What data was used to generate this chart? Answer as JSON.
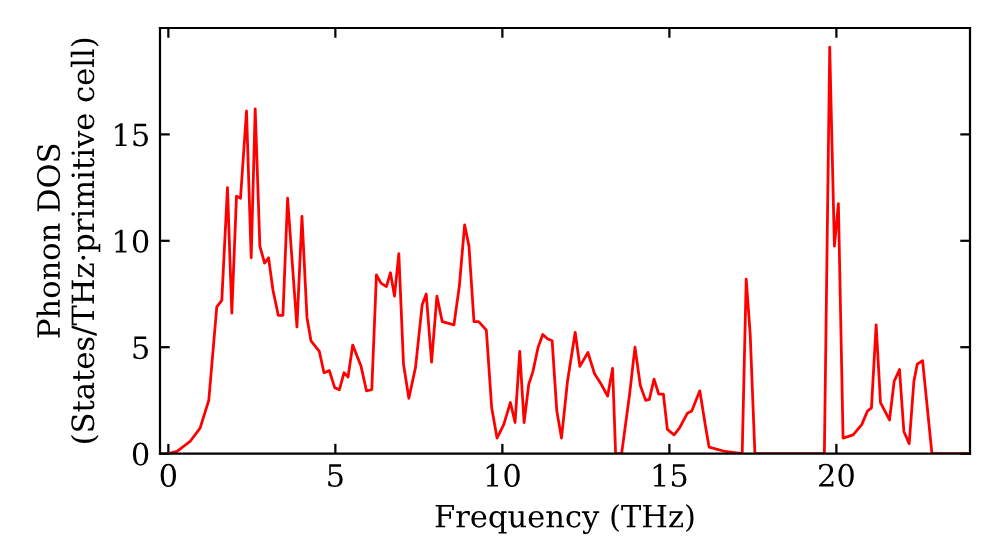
{
  "chart_data": {
    "type": "line",
    "xlabel": "Frequency (THz)",
    "ylabel": "Phonon DOS\n(States/THz·primitive cell)",
    "x": [
      0,
      0.26,
      0.65,
      0.95,
      1.21,
      1.45,
      1.6,
      1.77,
      1.9,
      2.04,
      2.16,
      2.34,
      2.48,
      2.6,
      2.74,
      2.88,
      3.0,
      3.13,
      3.29,
      3.43,
      3.57,
      3.71,
      3.85,
      4.0,
      4.15,
      4.27,
      4.52,
      4.66,
      4.82,
      4.98,
      5.12,
      5.26,
      5.38,
      5.52,
      5.77,
      5.93,
      6.09,
      6.23,
      6.37,
      6.53,
      6.65,
      6.77,
      6.9,
      7.04,
      7.2,
      7.4,
      7.6,
      7.72,
      7.88,
      8.04,
      8.2,
      8.55,
      8.71,
      8.87,
      9.0,
      9.15,
      9.29,
      9.52,
      9.68,
      9.84,
      10.04,
      10.24,
      10.38,
      10.52,
      10.65,
      10.79,
      10.91,
      11.07,
      11.21,
      11.35,
      11.49,
      11.63,
      11.77,
      11.95,
      12.18,
      12.32,
      12.56,
      12.76,
      12.96,
      13.15,
      13.3,
      13.39,
      13.57,
      13.81,
      13.97,
      14.13,
      14.29,
      14.4,
      14.54,
      14.68,
      14.82,
      14.94,
      15.14,
      15.3,
      15.54,
      15.67,
      15.91,
      16.09,
      16.19,
      16.67,
      17.18,
      17.3,
      17.42,
      17.56,
      19.64,
      19.8,
      19.94,
      20.06,
      20.2,
      20.5,
      20.76,
      20.93,
      21.05,
      21.19,
      21.32,
      21.59,
      21.73,
      21.89,
      22.02,
      22.18,
      22.32,
      22.42,
      22.58,
      22.86,
      23.87
    ],
    "series": [
      {
        "color": "#ff0000",
        "values": [
          0,
          0.1,
          0.57,
          1.2,
          2.5,
          6.9,
          7.2,
          12.5,
          6.6,
          12.1,
          12.0,
          16.1,
          9.2,
          16.2,
          9.75,
          8.95,
          9.2,
          7.7,
          6.5,
          6.5,
          12.0,
          8.95,
          5.95,
          11.15,
          6.4,
          5.3,
          4.8,
          3.8,
          3.9,
          3.1,
          3.0,
          3.8,
          3.6,
          5.1,
          4.1,
          2.95,
          3.0,
          8.4,
          8.0,
          7.85,
          8.5,
          7.4,
          9.4,
          4.2,
          2.6,
          4.05,
          7.0,
          7.5,
          4.3,
          7.4,
          6.2,
          6.05,
          7.85,
          10.75,
          9.75,
          6.2,
          6.2,
          5.8,
          2.15,
          0.73,
          1.36,
          2.4,
          1.46,
          4.8,
          1.46,
          3.26,
          3.83,
          5.0,
          5.6,
          5.4,
          5.3,
          2.0,
          0.73,
          3.4,
          5.7,
          4.1,
          4.75,
          3.75,
          3.26,
          2.7,
          4.0,
          0,
          0,
          2.8,
          5.0,
          3.2,
          2.5,
          2.55,
          3.5,
          2.8,
          2.8,
          1.14,
          0.88,
          1.2,
          1.9,
          2.0,
          2.95,
          1.2,
          0.3,
          0.1,
          0,
          8.2,
          5.6,
          0,
          0,
          19.1,
          9.75,
          11.75,
          0.73,
          0.88,
          1.36,
          2.0,
          2.15,
          6.05,
          2.4,
          1.58,
          3.4,
          3.95,
          1.04,
          0.47,
          3.4,
          4.2,
          4.37,
          0,
          0
        ]
      }
    ],
    "xlim": [
      -0.25,
      24
    ],
    "ylim": [
      0,
      20
    ],
    "xticks": [
      0,
      5,
      10,
      15,
      20
    ],
    "yticks": [
      0,
      5,
      10,
      15
    ],
    "grid": false,
    "legend": false,
    "marker": "none",
    "line_style": "solid"
  }
}
